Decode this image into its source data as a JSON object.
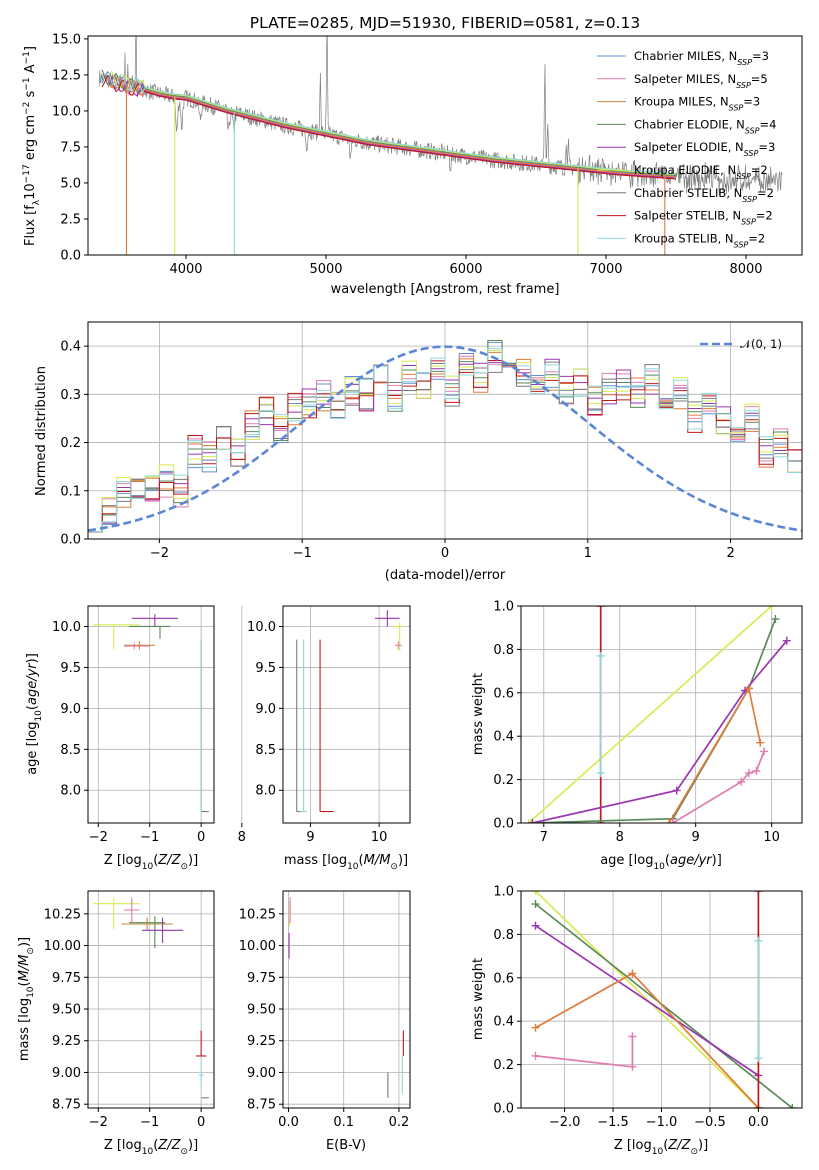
{
  "figure": {
    "title": "PLATE=0285, MJD=51930, FIBERID=0581, z=0.13"
  },
  "colors": {
    "Chabrier MILES": "#5f8fd0",
    "Salpeter MILES": "#e07cb0",
    "Kroupa MILES": "#c08a3a",
    "Chabrier ELODIE": "#5a8a5a",
    "Salpeter ELODIE": "#9a35b0",
    "Kroupa ELODIE": "#d9ea52",
    "Chabrier STELIB": "#7a7a7a",
    "Salpeter STELIB": "#c01818",
    "Kroupa STELIB": "#8ed8d8",
    "Kroupa MILES curve": "#e07b39",
    "normal": "#5b86d6",
    "grid": "#b0b0b0"
  },
  "chart_data": [
    {
      "id": "spectrum",
      "type": "line",
      "title": "PLATE=0285, MJD=51930, FIBERID=0581, z=0.13",
      "xlabel": "wavelength [Angstrom, rest frame]",
      "ylabel": "Flux [f_λ10^-17 erg cm^-2 s^-1 A^-1]",
      "xlim": [
        3300,
        8400
      ],
      "ylim": [
        0,
        15.2
      ],
      "xticks": [
        "4000",
        "5000",
        "6000",
        "7000",
        "8000"
      ],
      "yticks": [
        "0.0",
        "2.5",
        "5.0",
        "7.5",
        "10.0",
        "12.5",
        "15.0"
      ],
      "grid": false,
      "legend_position": "top-right",
      "legend": [
        {
          "name": "Chabrier MILES",
          "nssp": "3"
        },
        {
          "name": "Salpeter MILES",
          "nssp": "5"
        },
        {
          "name": "Kroupa MILES",
          "nssp": "3"
        },
        {
          "name": "Chabrier ELODIE",
          "nssp": "4"
        },
        {
          "name": "Salpeter ELODIE",
          "nssp": "3"
        },
        {
          "name": "Kroupa ELODIE",
          "nssp": "2"
        },
        {
          "name": "Chabrier STELIB",
          "nssp": "2"
        },
        {
          "name": "Salpeter STELIB",
          "nssp": "2"
        },
        {
          "name": "Kroupa STELIB",
          "nssp": "2"
        }
      ],
      "continuum": {
        "x": [
          3400,
          3500,
          3600,
          3700,
          3800,
          3900,
          4000,
          4100,
          4300,
          4500,
          4700,
          5000,
          5300,
          5600,
          5900,
          6200,
          6500,
          6800,
          7100,
          7400,
          7700,
          8000,
          8200
        ],
        "y": [
          12.3,
          12.0,
          11.7,
          11.5,
          11.2,
          11.0,
          10.9,
          10.6,
          10.0,
          9.5,
          9.0,
          8.4,
          7.8,
          7.4,
          7.0,
          6.6,
          6.3,
          6.0,
          5.7,
          5.5,
          5.3,
          5.2,
          5.1
        ]
      }
    },
    {
      "id": "residuals",
      "type": "histogram",
      "xlabel": "(data-model)/error",
      "ylabel": "Normed distribution",
      "xlim": [
        -2.5,
        2.5
      ],
      "ylim": [
        0,
        0.45
      ],
      "xticks": [
        "−2",
        "−1",
        "0",
        "1",
        "2"
      ],
      "yticks": [
        "0.0",
        "0.1",
        "0.2",
        "0.3",
        "0.4"
      ],
      "grid": true,
      "legend_position": "top-right",
      "normal_curve_label": "𝒩(0, 1)",
      "bin_width": 0.1,
      "base_histogram": [
        0.05,
        0.06,
        0.1,
        0.11,
        0.1,
        0.12,
        0.1,
        0.18,
        0.17,
        0.2,
        0.18,
        0.24,
        0.26,
        0.23,
        0.27,
        0.28,
        0.3,
        0.27,
        0.31,
        0.3,
        0.33,
        0.29,
        0.34,
        0.32,
        0.35,
        0.31,
        0.36,
        0.33,
        0.38,
        0.34,
        0.35,
        0.33,
        0.34,
        0.31,
        0.33,
        0.29,
        0.31,
        0.32,
        0.3,
        0.33,
        0.28,
        0.3,
        0.25,
        0.27,
        0.24,
        0.22,
        0.25,
        0.18,
        0.2,
        0.16,
        0.14,
        0.15,
        0.12,
        0.13,
        0.11,
        0.1,
        0.12,
        0.09,
        0.1,
        0.08,
        0.09,
        0.07,
        0.08,
        0.06,
        0.07,
        0.06,
        0.05,
        0.05,
        0.06,
        0.04,
        0.05,
        0.04,
        0.03,
        0.04,
        0.03,
        0.05,
        0.03,
        0.04,
        0.02,
        0.03,
        0.02,
        0.03,
        0.02,
        0.03,
        0.02,
        0.02,
        0.02,
        0.02,
        0.02,
        0.02,
        0.02,
        0.03,
        0.02,
        0.03,
        0.04,
        0.03,
        0.02,
        0.05,
        0.03,
        0.03
      ]
    },
    {
      "id": "age-vs-Z",
      "type": "errorbar",
      "xlabel": "Z [log10(Z/Z⊙)]",
      "ylabel": "age [log10(age/yr)]",
      "xlim": [
        -2.2,
        0.25
      ],
      "ylim": [
        7.6,
        10.25
      ],
      "xticks": [
        "−2",
        "−1",
        "0"
      ],
      "yticks": [
        "8.0",
        "8.5",
        "9.0",
        "9.5",
        "10.0"
      ],
      "grid": true,
      "points": [
        {
          "model": "Kroupa ELODIE",
          "x": -1.7,
          "y": 10.02,
          "xerr": [
            0.4,
            0.5
          ],
          "yerr": [
            0.3,
            0.0
          ]
        },
        {
          "model": "Chabrier ELODIE",
          "x": -0.8,
          "y": 10.0,
          "xerr": [
            0.6,
            0.2
          ],
          "yerr": [
            0.15,
            0.0
          ]
        },
        {
          "model": "Salpeter ELODIE",
          "x": -0.9,
          "y": 10.1,
          "xerr": [
            0.45,
            0.45
          ],
          "yerr": [
            0.1,
            0.05
          ]
        },
        {
          "model": "Kroupa MILES",
          "x": -1.2,
          "y": 9.77,
          "xerr": [
            0.3,
            0.3
          ],
          "yerr": [
            0.05,
            0.05
          ]
        },
        {
          "model": "Salpeter MILES",
          "x": -1.3,
          "y": 9.76,
          "xerr": [
            0.2,
            0.3
          ],
          "yerr": [
            0.04,
            0.04
          ]
        },
        {
          "model": "Chabrier STELIB",
          "x": 0.0,
          "y": 7.74,
          "xerr": [
            0.0,
            0.15
          ],
          "yerr": [
            0.0,
            2.1
          ]
        },
        {
          "model": "Kroupa STELIB",
          "x": 0.0,
          "y": 7.74,
          "xerr": [
            0.0,
            0.0
          ],
          "yerr": [
            0.0,
            2.1
          ]
        }
      ]
    },
    {
      "id": "age-vs-mass",
      "type": "errorbar",
      "xlabel": "mass [log10(M/M⊙)]",
      "ylabel": "",
      "xlim": [
        8.6,
        10.45
      ],
      "ylim": [
        7.6,
        10.25
      ],
      "xticks": [
        "8",
        "9",
        "10"
      ],
      "yticks": [
        "8.0",
        "8.5",
        "9.0",
        "9.5",
        "10.0"
      ],
      "grid": true,
      "points": [
        {
          "model": "Chabrier STELIB",
          "x": 8.8,
          "y": 7.74,
          "xerr": [
            0.0,
            0.1
          ],
          "yerr": [
            0.0,
            2.1
          ]
        },
        {
          "model": "Kroupa STELIB",
          "x": 8.9,
          "y": 7.74,
          "xerr": [
            0.05,
            0.05
          ],
          "yerr": [
            0.0,
            2.1
          ]
        },
        {
          "model": "Salpeter STELIB",
          "x": 9.14,
          "y": 7.74,
          "xerr": [
            0.0,
            0.2
          ],
          "yerr": [
            0.0,
            2.1
          ]
        },
        {
          "model": "Salpeter ELODIE",
          "x": 10.12,
          "y": 10.1,
          "xerr": [
            0.18,
            0.18
          ],
          "yerr": [
            0.1,
            0.1
          ]
        },
        {
          "model": "Kroupa ELODIE",
          "x": 10.3,
          "y": 10.0,
          "xerr": [
            0.1,
            0.05
          ],
          "yerr": [
            0.3,
            0.05
          ]
        },
        {
          "model": "Salpeter MILES",
          "x": 10.28,
          "y": 9.77,
          "xerr": [
            0.05,
            0.05
          ],
          "yerr": [
            0.05,
            0.05
          ]
        }
      ]
    },
    {
      "id": "weight-vs-age",
      "type": "line",
      "xlabel": "age [log10(age/yr)]",
      "ylabel": "mass weight",
      "xlim": [
        6.7,
        10.4
      ],
      "ylim": [
        0,
        1
      ],
      "xticks": [
        "7",
        "8",
        "9",
        "10"
      ],
      "yticks": [
        "0.0",
        "0.2",
        "0.4",
        "0.6",
        "0.8",
        "1.0"
      ],
      "grid": true,
      "series": [
        {
          "model": "Kroupa ELODIE",
          "x": [
            6.8,
            10.0
          ],
          "y": [
            0.0,
            1.0
          ]
        },
        {
          "model": "Salpeter STELIB",
          "x": [
            7.75,
            7.75
          ],
          "y": [
            0.0,
            1.0
          ]
        },
        {
          "model": "Kroupa STELIB",
          "x": [
            7.75,
            7.75
          ],
          "y": [
            0.23,
            0.77
          ]
        },
        {
          "model": "Chabrier ELODIE",
          "x": [
            6.85,
            8.7,
            9.7,
            10.05
          ],
          "y": [
            0.0,
            0.02,
            0.62,
            0.94
          ]
        },
        {
          "model": "Salpeter ELODIE",
          "x": [
            6.85,
            8.75,
            9.65,
            10.2
          ],
          "y": [
            0.0,
            0.15,
            0.61,
            0.84
          ]
        },
        {
          "model": "Kroupa MILES",
          "x": [
            8.65,
            9.7,
            9.85
          ],
          "y": [
            0.0,
            0.62,
            0.37
          ]
        },
        {
          "model": "Salpeter MILES",
          "x": [
            8.7,
            9.6,
            9.7,
            9.8,
            9.9
          ],
          "y": [
            0.0,
            0.19,
            0.23,
            0.24,
            0.33
          ]
        }
      ]
    },
    {
      "id": "mass-vs-Z",
      "type": "errorbar",
      "xlabel": "Z [log10(Z/Z⊙)]",
      "ylabel": "mass [log10(M/M⊙)]",
      "xlim": [
        -2.2,
        0.25
      ],
      "ylim": [
        8.72,
        10.43
      ],
      "xticks": [
        "−2",
        "−1",
        "0"
      ],
      "yticks": [
        "8.75",
        "9.00",
        "9.25",
        "9.50",
        "9.75",
        "10.00",
        "10.25"
      ],
      "grid": true,
      "points": [
        {
          "model": "Kroupa ELODIE",
          "x": -1.7,
          "y": 10.33,
          "xerr": [
            0.4,
            0.5
          ],
          "yerr": [
            0.2,
            0.05
          ]
        },
        {
          "model": "Salpeter MILES",
          "x": -1.35,
          "y": 10.28,
          "xerr": [
            0.15,
            0.15
          ],
          "yerr": [
            0.1,
            0.1
          ]
        },
        {
          "model": "Chabrier ELODIE",
          "x": -0.9,
          "y": 10.18,
          "xerr": [
            0.5,
            0.2
          ],
          "yerr": [
            0.2,
            0.05
          ]
        },
        {
          "model": "Kroupa MILES",
          "x": -1.05,
          "y": 10.17,
          "xerr": [
            0.5,
            0.5
          ],
          "yerr": [
            0.05,
            0.05
          ]
        },
        {
          "model": "Salpeter ELODIE",
          "x": -0.75,
          "y": 10.12,
          "xerr": [
            0.4,
            0.4
          ],
          "yerr": [
            0.1,
            0.1
          ]
        },
        {
          "model": "Salpeter STELIB",
          "x": 0.0,
          "y": 9.13,
          "xerr": [
            0.1,
            0.1
          ],
          "yerr": [
            0.0,
            0.2
          ]
        },
        {
          "model": "Kroupa STELIB",
          "x": 0.0,
          "y": 8.98,
          "xerr": [
            0.05,
            0.05
          ],
          "yerr": [
            0.1,
            0.1
          ]
        },
        {
          "model": "Chabrier STELIB",
          "x": 0.0,
          "y": 8.8,
          "xerr": [
            0.0,
            0.15
          ],
          "yerr": [
            0.0,
            0.0
          ]
        }
      ]
    },
    {
      "id": "mass-vs-EBV",
      "type": "errorbar",
      "xlabel": "E(B-V)",
      "ylabel": "",
      "xlim": [
        -0.01,
        0.22
      ],
      "ylim": [
        8.72,
        10.43
      ],
      "xticks": [
        "0.0",
        "0.1",
        "0.2"
      ],
      "yticks": [
        "8.75",
        "9.00",
        "9.25",
        "9.50",
        "9.75",
        "10.00",
        "10.25"
      ],
      "grid": true,
      "points": [
        {
          "model": "Kroupa ELODIE",
          "x": 0.002,
          "y": 10.3,
          "xerr": [
            0.0,
            0.0
          ],
          "yerr": [
            0.15,
            0.05
          ]
        },
        {
          "model": "Salpeter MILES",
          "x": 0.003,
          "y": 10.28,
          "xerr": [
            0.0,
            0.0
          ],
          "yerr": [
            0.1,
            0.1
          ]
        },
        {
          "model": "Salpeter ELODIE",
          "x": 0.001,
          "y": 10.0,
          "xerr": [
            0.0,
            0.0
          ],
          "yerr": [
            0.1,
            0.1
          ]
        },
        {
          "model": "Salpeter STELIB",
          "x": 0.208,
          "y": 9.13,
          "xerr": [
            0.0,
            0.0
          ],
          "yerr": [
            0.0,
            0.2
          ]
        },
        {
          "model": "Chabrier STELIB",
          "x": 0.18,
          "y": 8.8,
          "xerr": [
            0.0,
            0.0
          ],
          "yerr": [
            0.0,
            0.2
          ]
        },
        {
          "model": "Kroupa STELIB",
          "x": 0.206,
          "y": 8.98,
          "xerr": [
            0.0,
            0.0
          ],
          "yerr": [
            0.15,
            0.15
          ]
        }
      ]
    },
    {
      "id": "weight-vs-Z",
      "type": "line",
      "xlabel": "Z [log10(Z/Z⊙)]",
      "ylabel": "mass weight",
      "xlim": [
        -2.45,
        0.45
      ],
      "ylim": [
        0,
        1
      ],
      "xticks": [
        "−2.0",
        "−1.5",
        "−1.0",
        "−0.5",
        "0.0"
      ],
      "yticks": [
        "0.0",
        "0.2",
        "0.4",
        "0.6",
        "0.8",
        "1.0"
      ],
      "grid": true,
      "series": [
        {
          "model": "Kroupa ELODIE",
          "x": [
            -2.3,
            0.0
          ],
          "y": [
            1.0,
            0.0
          ]
        },
        {
          "model": "Chabrier ELODIE",
          "x": [
            -2.3,
            0.35
          ],
          "y": [
            0.94,
            0.0
          ]
        },
        {
          "model": "Salpeter ELODIE",
          "x": [
            -2.3,
            0.0
          ],
          "y": [
            0.84,
            0.15
          ]
        },
        {
          "model": "Kroupa MILES",
          "x": [
            -2.3,
            -1.3,
            0.0
          ],
          "y": [
            0.37,
            0.62,
            0.0
          ]
        },
        {
          "model": "Salpeter MILES",
          "x": [
            -2.3,
            -1.3,
            -1.3
          ],
          "y": [
            0.24,
            0.19,
            0.33
          ]
        },
        {
          "model": "Salpeter STELIB",
          "x": [
            0.0,
            0.0
          ],
          "y": [
            0.0,
            1.0
          ]
        },
        {
          "model": "Kroupa STELIB",
          "x": [
            0.0,
            0.0
          ],
          "y": [
            0.23,
            0.77
          ]
        }
      ]
    }
  ]
}
